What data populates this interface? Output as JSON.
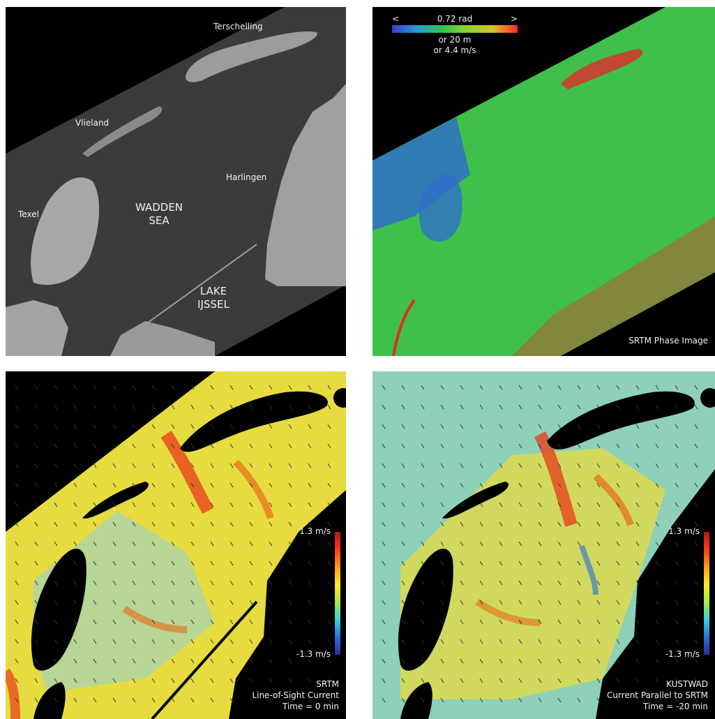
{
  "panels": {
    "sar": {
      "labels": {
        "terschelling": "Terschelling",
        "vlieland": "Vlieland",
        "harlingen": "Harlingen",
        "texel": "Texel",
        "wadden_1": "WADDEN",
        "wadden_2": "SEA",
        "lake_1": "LAKE",
        "lake_2": "IJSSEL"
      }
    },
    "phase": {
      "legend": {
        "left_arrow": "<",
        "value": "0.72 rad",
        "right_arrow": ">",
        "line2": "or 20 m",
        "line3": "or 4.4 m/s"
      },
      "caption": "SRTM Phase Image"
    },
    "srtm_current": {
      "colorbar_max": "1.3 m/s",
      "colorbar_min": "-1.3 m/s",
      "caption_1": "SRTM",
      "caption_2": "Line-of-Sight Current",
      "caption_3": "Time = 0 min"
    },
    "kustwad_current": {
      "colorbar_max": "1.3 m/s",
      "colorbar_min": "-1.3 m/s",
      "caption_1": "KUSTWAD",
      "caption_2": "Current Parallel to SRTM",
      "caption_3": "Time = -20 min"
    }
  },
  "colors": {
    "sar_water": "#3c3c3c",
    "sar_land": "#9a9a9a",
    "phase_green": "#3fc04a",
    "phase_blue": "#2f6fc8",
    "phase_red": "#e02a2a",
    "current_yellow": "#e6dc40",
    "current_cyan": "#7fcfe0",
    "current_red": "#e83a1a",
    "kustwad_bg": "#8ed0b8"
  }
}
